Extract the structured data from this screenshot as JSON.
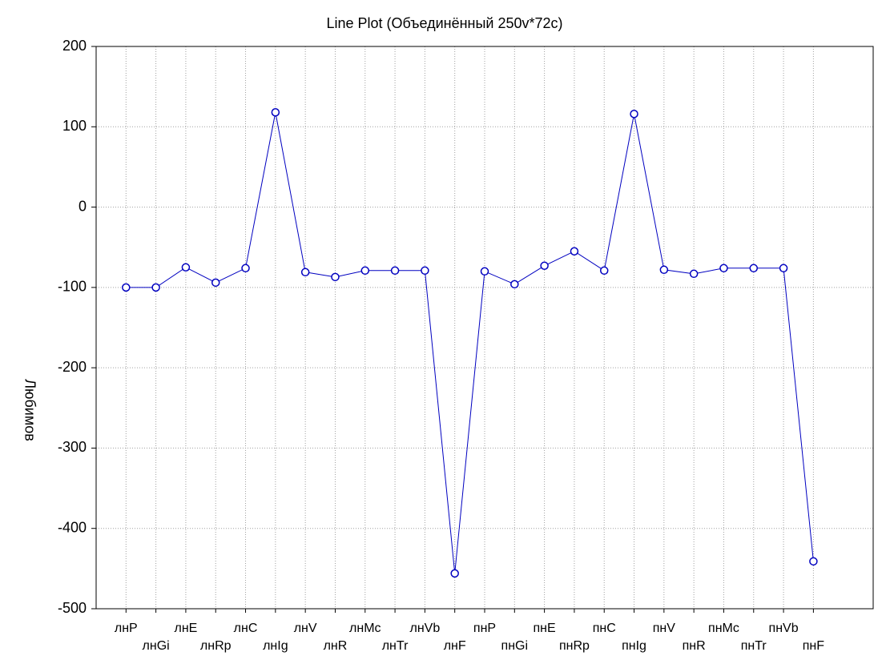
{
  "chart_data": {
    "type": "line",
    "title": "Line Plot (Объединённый 250v*72c)",
    "y_label": "Любимов",
    "categories": [
      "лнP",
      "лнGi",
      "лнE",
      "лнRp",
      "лнC",
      "лнIg",
      "лнV",
      "лнR",
      "лнMc",
      "лнTr",
      "лнVb",
      "лнF",
      "пнP",
      "пнGi",
      "пнE",
      "пнRp",
      "пнC",
      "пнIg",
      "пнV",
      "пнR",
      "пнMc",
      "пнTr",
      "пнVb",
      "пнF"
    ],
    "values": [
      -100,
      -100,
      -75,
      -94,
      -76,
      118,
      -81,
      -87,
      -79,
      -79,
      -79,
      -456,
      -80,
      -96,
      -73,
      -55,
      -79,
      116,
      -78,
      -83,
      -76,
      -76,
      -76,
      -441
    ],
    "color": "#0000c0",
    "ylim": [
      -500,
      200
    ],
    "yticks": [
      -500,
      -400,
      -300,
      -200,
      -100,
      0,
      100,
      200
    ],
    "grid": true
  }
}
